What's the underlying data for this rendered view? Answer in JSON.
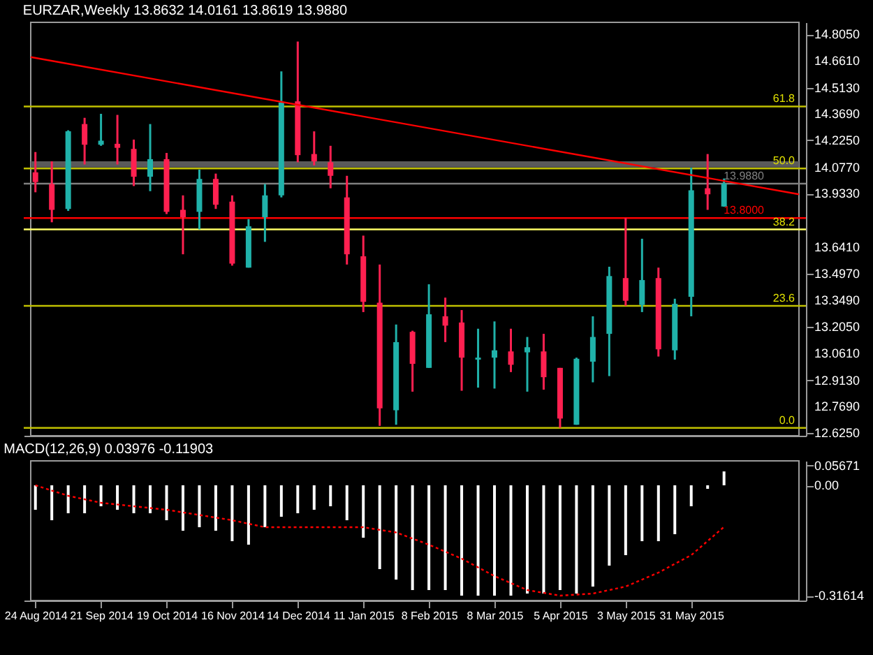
{
  "chart_data": [
    {
      "type": "candlestick",
      "title": "EURZAR,Weekly 13.8632 14.0161 13.8619 13.9880",
      "x": [
        "2014-08-24",
        "2014-08-31",
        "2014-09-07",
        "2014-09-14",
        "2014-09-21",
        "2014-09-28",
        "2014-10-05",
        "2014-10-12",
        "2014-10-19",
        "2014-10-26",
        "2014-11-02",
        "2014-11-09",
        "2014-11-16",
        "2014-11-23",
        "2014-11-30",
        "2014-12-07",
        "2014-12-14",
        "2014-12-21",
        "2014-12-28",
        "2015-01-04",
        "2015-01-11",
        "2015-01-18",
        "2015-01-25",
        "2015-02-01",
        "2015-02-08",
        "2015-02-15",
        "2015-02-22",
        "2015-03-01",
        "2015-03-08",
        "2015-03-15",
        "2015-03-22",
        "2015-03-29",
        "2015-04-05",
        "2015-04-12",
        "2015-04-19",
        "2015-04-26",
        "2015-05-03",
        "2015-05-10",
        "2015-05-17",
        "2015-05-24",
        "2015-05-31",
        "2015-06-07",
        "2015-06-14"
      ],
      "ohlc": [
        [
          14.05,
          14.161,
          13.941,
          13.997
        ],
        [
          13.986,
          14.11,
          13.777,
          13.845
        ],
        [
          13.85,
          14.28,
          13.839,
          14.274
        ],
        [
          14.314,
          14.348,
          14.093,
          14.201
        ],
        [
          14.201,
          14.37,
          14.195,
          14.223
        ],
        [
          14.206,
          14.364,
          14.093,
          14.184
        ],
        [
          14.178,
          14.229,
          13.975,
          14.026
        ],
        [
          14.026,
          14.314,
          13.947,
          14.122
        ],
        [
          14.122,
          14.156,
          13.822,
          13.834
        ],
        [
          13.845,
          13.924,
          13.602,
          13.805
        ],
        [
          13.834,
          14.065,
          13.738,
          14.014
        ],
        [
          14.014,
          14.043,
          13.85,
          13.873
        ],
        [
          13.89,
          13.924,
          13.54,
          13.551
        ],
        [
          13.529,
          13.794,
          13.529,
          13.755
        ],
        [
          13.805,
          13.986,
          13.67,
          13.924
        ],
        [
          13.924,
          14.602,
          13.913,
          14.432
        ],
        [
          14.438,
          14.765,
          14.105,
          14.144
        ],
        [
          14.15,
          14.274,
          14.088,
          14.11
        ],
        [
          14.105,
          14.195,
          13.963,
          14.031
        ],
        [
          13.913,
          14.031,
          13.546,
          13.602
        ],
        [
          13.591,
          13.704,
          13.286,
          13.342
        ],
        [
          13.337,
          13.546,
          12.664,
          12.76
        ],
        [
          12.749,
          13.218,
          12.67,
          13.122
        ],
        [
          13.178,
          13.184,
          12.851,
          13.003
        ],
        [
          12.981,
          13.438,
          12.981,
          13.274
        ],
        [
          13.263,
          13.365,
          13.122,
          13.212
        ],
        [
          13.229,
          13.297,
          12.856,
          13.037
        ],
        [
          13.026,
          13.195,
          12.873,
          13.037
        ],
        [
          13.037,
          13.235,
          12.868,
          13.077
        ],
        [
          13.071,
          13.195,
          12.958,
          12.998
        ],
        [
          13.066,
          13.15,
          12.851,
          13.094
        ],
        [
          13.071,
          13.167,
          12.862,
          12.93
        ],
        [
          12.981,
          12.981,
          12.653,
          12.704
        ],
        [
          12.67,
          13.037,
          12.67,
          13.031
        ],
        [
          13.015,
          13.263,
          12.902,
          13.15
        ],
        [
          13.167,
          13.534,
          12.936,
          13.483
        ],
        [
          13.472,
          13.8,
          13.32,
          13.348
        ],
        [
          13.325,
          13.687,
          13.286,
          13.461
        ],
        [
          13.472,
          13.529,
          13.043,
          13.082
        ],
        [
          13.077,
          13.359,
          13.026,
          13.331
        ],
        [
          13.37,
          14.076,
          13.263,
          13.952
        ],
        [
          13.963,
          14.15,
          13.845,
          13.93
        ],
        [
          13.8632,
          14.0161,
          13.8619,
          13.988
        ]
      ],
      "colors": [
        "#ff2050",
        "#ff2050",
        "#20b2aa",
        "#ff2050",
        "#20b2aa",
        "#ff2050",
        "#ff2050",
        "#20b2aa",
        "#ff2050",
        "#ff2050",
        "#20b2aa",
        "#ff2050",
        "#ff2050",
        "#20b2aa",
        "#20b2aa",
        "#20b2aa",
        "#ff2050",
        "#ff2050",
        "#ff2050",
        "#ff2050",
        "#ff2050",
        "#ff2050",
        "#20b2aa",
        "#ff2050",
        "#20b2aa",
        "#ff2050",
        "#ff2050",
        "#20b2aa",
        "#20b2aa",
        "#ff2050",
        "#20b2aa",
        "#ff2050",
        "#ff2050",
        "#20b2aa",
        "#20b2aa",
        "#20b2aa",
        "#ff2050",
        "#20b2aa",
        "#ff2050",
        "#20b2aa",
        "#20b2aa",
        "#ff2050",
        "#20b2aa"
      ],
      "series": [
        {
          "type": "line",
          "x": [
            "2014-08-22",
            "2015-07-16"
          ],
          "values": [
            14.68,
            13.93
          ],
          "color": "#ff0000"
        }
      ],
      "xlim": [
        "2014-08-22",
        "2015-07-16"
      ],
      "ylim": [
        12.61,
        14.87
      ],
      "yticks": [
        {
          "value": 14.805,
          "label": "14.8050"
        },
        {
          "value": 14.661,
          "label": "14.6610"
        },
        {
          "value": 14.513,
          "label": "14.5130"
        },
        {
          "value": 14.369,
          "label": "14.3690"
        },
        {
          "value": 14.225,
          "label": "14.2250"
        },
        {
          "value": 14.077,
          "label": "14.0770"
        },
        {
          "value": 13.933,
          "label": "13.9330"
        },
        {
          "value": 13.641,
          "label": "13.6410"
        },
        {
          "value": 13.497,
          "label": "13.4970"
        },
        {
          "value": 13.349,
          "label": "13.3490"
        },
        {
          "value": 13.205,
          "label": "13.2050"
        },
        {
          "value": 13.061,
          "label": "13.0610"
        },
        {
          "value": 12.913,
          "label": "12.9130"
        },
        {
          "value": 12.769,
          "label": "12.7690"
        },
        {
          "value": 12.625,
          "label": "12.6250"
        }
      ],
      "bands": [
        {
          "axis": "y",
          "from": 14.077,
          "to": 14.11,
          "color": "#5a5a5a"
        }
      ],
      "ref_lines": [
        {
          "axis": "y",
          "value": 14.41,
          "color": "#c0c000"
        },
        {
          "axis": "y",
          "value": 14.071,
          "color": "#c0c000"
        },
        {
          "axis": "y",
          "value": 13.988,
          "label": "13.9880",
          "color": "#808080"
        },
        {
          "axis": "y",
          "value": 13.8,
          "label": "13.8000",
          "color": "#ff0000"
        },
        {
          "axis": "y",
          "value": 13.738,
          "color": "#ffff66"
        },
        {
          "axis": "y",
          "value": 13.32,
          "color": "#c0c000"
        },
        {
          "axis": "y",
          "value": 12.653,
          "color": "#c0c000"
        }
      ],
      "annotations": [
        {
          "text": "61.8",
          "x": "2015-07-16",
          "y": 14.41
        },
        {
          "text": "50.0",
          "x": "2015-07-16",
          "y": 14.071
        },
        {
          "text": "38.2",
          "x": "2015-07-16",
          "y": 13.738
        },
        {
          "text": "23.6",
          "x": "2015-07-16",
          "y": 13.32
        },
        {
          "text": "0.0",
          "x": "2015-07-16",
          "y": 12.653
        }
      ],
      "tick_labels": "y",
      "grid": false
    },
    {
      "type": "bar",
      "title": "MACD(12,26,9) 0.03976 -0.11903",
      "x": [
        "2014-08-24",
        "2014-08-31",
        "2014-09-07",
        "2014-09-14",
        "2014-09-21",
        "2014-09-28",
        "2014-10-05",
        "2014-10-12",
        "2014-10-19",
        "2014-10-26",
        "2014-11-02",
        "2014-11-09",
        "2014-11-16",
        "2014-11-23",
        "2014-11-30",
        "2014-12-07",
        "2014-12-14",
        "2014-12-21",
        "2014-12-28",
        "2015-01-04",
        "2015-01-11",
        "2015-01-18",
        "2015-01-25",
        "2015-02-01",
        "2015-02-08",
        "2015-02-15",
        "2015-02-22",
        "2015-03-01",
        "2015-03-08",
        "2015-03-15",
        "2015-03-22",
        "2015-03-29",
        "2015-04-05",
        "2015-04-12",
        "2015-04-19",
        "2015-04-26",
        "2015-05-03",
        "2015-05-10",
        "2015-05-17",
        "2015-05-24",
        "2015-05-31",
        "2015-06-07",
        "2015-06-14"
      ],
      "series": [
        {
          "color": "#ffffff",
          "values": [
            -0.07,
            -0.1,
            -0.08,
            -0.08,
            -0.06,
            -0.07,
            -0.08,
            -0.08,
            -0.1,
            -0.13,
            -0.12,
            -0.13,
            -0.16,
            -0.17,
            -0.12,
            -0.09,
            -0.08,
            -0.07,
            -0.06,
            -0.1,
            -0.15,
            -0.24,
            -0.27,
            -0.3,
            -0.3,
            -0.3,
            -0.316,
            -0.316,
            -0.316,
            -0.316,
            -0.31,
            -0.31,
            -0.3,
            -0.31,
            -0.29,
            -0.23,
            -0.2,
            -0.16,
            -0.16,
            -0.14,
            -0.06,
            -0.01,
            0.03976
          ]
        },
        {
          "type": "line",
          "line_style": "dotted",
          "color": "#ff0000",
          "x": [
            "2014-08-24",
            "2014-09-07",
            "2014-09-21",
            "2014-10-19",
            "2014-11-16",
            "2014-11-30",
            "2015-01-11",
            "2015-01-25",
            "2015-02-08",
            "2015-02-22",
            "2015-03-08",
            "2015-03-22",
            "2015-04-05",
            "2015-04-19",
            "2015-05-03",
            "2015-05-17",
            "2015-05-31",
            "2015-06-14"
          ],
          "values": [
            0,
            -0.03,
            -0.05,
            -0.07,
            -0.1,
            -0.12,
            -0.12,
            -0.135,
            -0.17,
            -0.21,
            -0.26,
            -0.3,
            -0.316,
            -0.31,
            -0.29,
            -0.25,
            -0.2,
            -0.11903
          ]
        }
      ],
      "xlim": [
        "2014-08-22",
        "2015-07-16"
      ],
      "xticks": [
        {
          "value": "2014-08-24",
          "label": "24 Aug 2014"
        },
        {
          "value": "2014-09-21",
          "label": "21 Sep 2014"
        },
        {
          "value": "2014-10-19",
          "label": "19 Oct 2014"
        },
        {
          "value": "2014-11-16",
          "label": "16 Nov 2014"
        },
        {
          "value": "2014-12-14",
          "label": "14 Dec 2014"
        },
        {
          "value": "2015-01-11",
          "label": "11 Jan 2015"
        },
        {
          "value": "2015-02-08",
          "label": "8 Feb 2015"
        },
        {
          "value": "2015-03-08",
          "label": "8 Mar 2015"
        },
        {
          "value": "2015-04-05",
          "label": "5 Apr 2015"
        },
        {
          "value": "2015-05-03",
          "label": "3 May 2015"
        },
        {
          "value": "2015-05-31",
          "label": "31 May 2015"
        }
      ],
      "ylim": [
        -0.33,
        0.07
      ],
      "yticks": [
        0.05671,
        {
          "value": 0,
          "label": "0.00"
        },
        -0.31614
      ],
      "grid": false
    }
  ]
}
